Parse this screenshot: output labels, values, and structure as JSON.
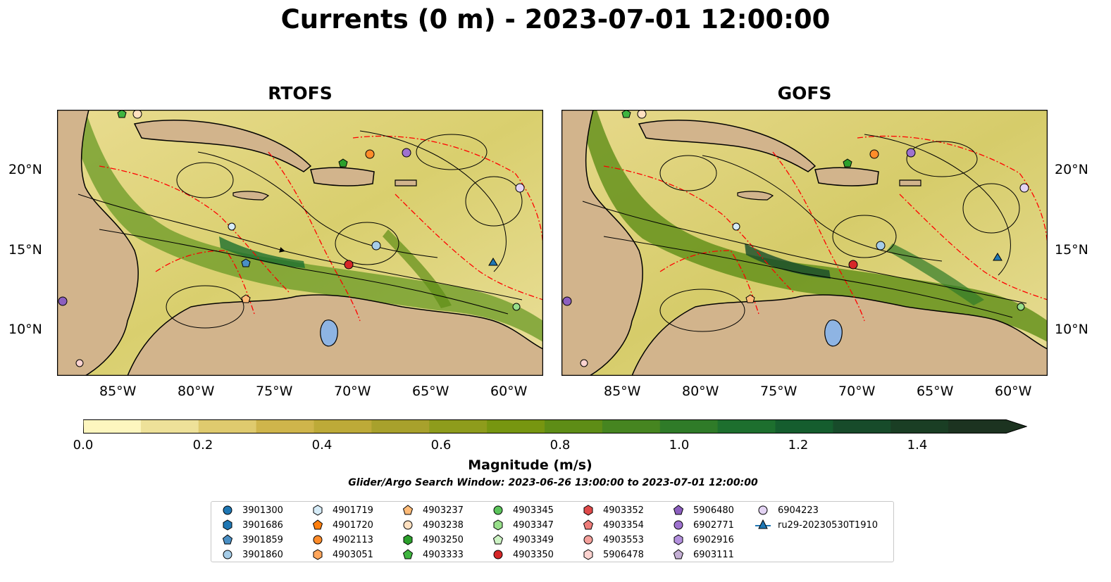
{
  "title": "Currents (0 m) - 2023-07-01 12:00:00",
  "panels": [
    {
      "title": "RTOFS"
    },
    {
      "title": "GOFS"
    }
  ],
  "lon_labels": [
    "85°W",
    "80°W",
    "75°W",
    "70°W",
    "65°W",
    "60°W"
  ],
  "lat_labels": [
    "20°N",
    "15°N",
    "10°N"
  ],
  "map": {
    "lon_range": [
      -89,
      -58
    ],
    "lat_range": [
      7,
      24
    ],
    "land_color": "#d2b48c",
    "lake_color": "#8eb4e3",
    "border_color": "#ff0000"
  },
  "colorbar": {
    "label": "Magnitude (m/s)",
    "range": [
      0.0,
      1.5
    ],
    "extend": "max",
    "ticks": [
      "0.0",
      "0.2",
      "0.4",
      "0.6",
      "0.8",
      "1.0",
      "1.2",
      "1.4"
    ],
    "colors": [
      "#fdf6bf",
      "#eee199",
      "#dfca6e",
      "#cfb54b",
      "#bdaa38",
      "#a8a12c",
      "#8e9c1c",
      "#779610",
      "#5e8d16",
      "#468520",
      "#2f7b28",
      "#1d6f2e",
      "#155d2e",
      "#174b2a",
      "#1a3e24",
      "#1c3320"
    ]
  },
  "search_window": "Glider/Argo Search Window: 2023-06-26 13:00:00 to 2023-07-01 12:00:00",
  "legend": [
    {
      "label": "3901300",
      "shape": "circle",
      "color": "#1f77b4"
    },
    {
      "label": "3901686",
      "shape": "hexagon",
      "color": "#1f77b4"
    },
    {
      "label": "3901859",
      "shape": "pentagon",
      "color": "#4a8fc4"
    },
    {
      "label": "3901860",
      "shape": "circle",
      "color": "#a6cde8"
    },
    {
      "label": "4901719",
      "shape": "hexagon",
      "color": "#d6ecf8"
    },
    {
      "label": "4901720",
      "shape": "pentagon",
      "color": "#ff7f0e"
    },
    {
      "label": "4902113",
      "shape": "circle",
      "color": "#ff8c2a"
    },
    {
      "label": "4903051",
      "shape": "hexagon",
      "color": "#ffa65c"
    },
    {
      "label": "4903237",
      "shape": "pentagon",
      "color": "#ffbb78"
    },
    {
      "label": "4903238",
      "shape": "circle",
      "color": "#ffe0c0"
    },
    {
      "label": "4903250",
      "shape": "hexagon",
      "color": "#2ca02c"
    },
    {
      "label": "4903333",
      "shape": "pentagon",
      "color": "#3fb53f"
    },
    {
      "label": "4903345",
      "shape": "circle",
      "color": "#5bc45b"
    },
    {
      "label": "4903347",
      "shape": "hexagon",
      "color": "#98df8a"
    },
    {
      "label": "4903349",
      "shape": "pentagon",
      "color": "#cdf3c4"
    },
    {
      "label": "4903350",
      "shape": "circle",
      "color": "#d62728"
    },
    {
      "label": "4903352",
      "shape": "hexagon",
      "color": "#e04a4a"
    },
    {
      "label": "4903354",
      "shape": "pentagon",
      "color": "#ee7d7a"
    },
    {
      "label": "4903553",
      "shape": "circle",
      "color": "#f4a09b"
    },
    {
      "label": "5906478",
      "shape": "hexagon",
      "color": "#fcd3d0"
    },
    {
      "label": "5906480",
      "shape": "pentagon",
      "color": "#8c5fbf"
    },
    {
      "label": "6902771",
      "shape": "circle",
      "color": "#9e72cf"
    },
    {
      "label": "6902916",
      "shape": "hexagon",
      "color": "#b390de"
    },
    {
      "label": "6903111",
      "shape": "pentagon",
      "color": "#c5b0d5"
    },
    {
      "label": "6904223",
      "shape": "circle",
      "color": "#e3d3f3"
    },
    {
      "label": "ru29-20230530T1910",
      "shape": "triangle-line",
      "color": "#1f77b4"
    }
  ]
}
